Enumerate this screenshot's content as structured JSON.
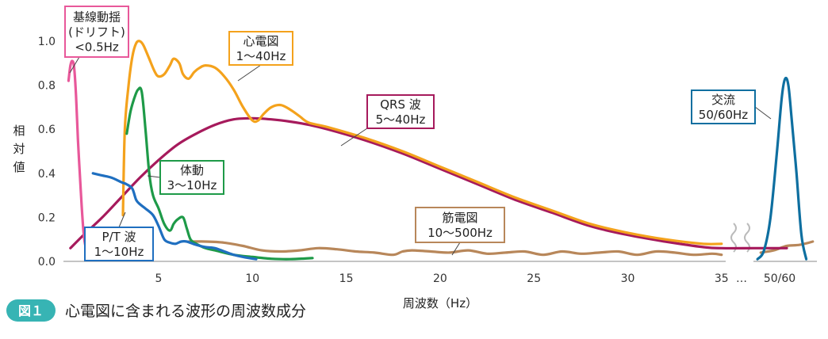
{
  "figure": {
    "badge": "図１",
    "title": "心電図に含まれる波形の周波数成分"
  },
  "chart_data": {
    "type": "line",
    "xlabel": "周波数（Hz）",
    "ylabel": "相対値",
    "xlim": [
      0,
      36.8
    ],
    "ylim": [
      0,
      1.0
    ],
    "x_ticks": [
      "5",
      "10",
      "15",
      "20",
      "25",
      "30",
      "35"
    ],
    "x_tick_values": [
      5,
      10,
      15,
      20,
      25,
      30,
      35
    ],
    "x_extra_ticks": [
      "…",
      "50/60"
    ],
    "y_ticks": [
      "0.0",
      "0.2",
      "0.4",
      "0.6",
      "0.8",
      "1.0"
    ],
    "y_tick_values": [
      0.0,
      0.2,
      0.4,
      0.6,
      0.8,
      1.0
    ],
    "grid": false,
    "axis_break": "between 35 and 50/60",
    "series": [
      {
        "key": "drift",
        "color": "#e8589a",
        "label_lines": [
          "基線動揺",
          "(ドリフト)",
          "<0.5Hz"
        ],
        "x": [
          0.2,
          0.3,
          0.4,
          0.5,
          0.6,
          0.7,
          0.8,
          0.9,
          1.0,
          1.1,
          1.2
        ],
        "y": [
          0.82,
          0.89,
          0.91,
          0.88,
          0.75,
          0.55,
          0.4,
          0.25,
          0.13,
          0.07,
          0.05
        ]
      },
      {
        "key": "ecg",
        "color": "#f4a21c",
        "label_lines": [
          "心電図",
          "1〜40Hz"
        ],
        "x": [
          3.1,
          3.2,
          3.4,
          3.6,
          3.8,
          4.0,
          4.2,
          4.5,
          4.8,
          5.0,
          5.3,
          5.6,
          5.8,
          6.1,
          6.3,
          6.6,
          6.9,
          7.2,
          7.5,
          8.0,
          8.5,
          9.0,
          9.5,
          10.0,
          10.3,
          10.6,
          11.0,
          11.5,
          12.0,
          12.5,
          13.0,
          14.0,
          16.0,
          18.0,
          20.0,
          22.0,
          24.0,
          26.0,
          28.0,
          30.0,
          32.0,
          34.0,
          35.0
        ],
        "y": [
          0.21,
          0.6,
          0.8,
          0.93,
          0.99,
          1.0,
          0.98,
          0.92,
          0.86,
          0.84,
          0.85,
          0.89,
          0.92,
          0.9,
          0.85,
          0.83,
          0.86,
          0.88,
          0.89,
          0.88,
          0.84,
          0.78,
          0.7,
          0.64,
          0.64,
          0.67,
          0.7,
          0.71,
          0.69,
          0.66,
          0.63,
          0.61,
          0.56,
          0.5,
          0.43,
          0.36,
          0.29,
          0.23,
          0.17,
          0.13,
          0.1,
          0.08,
          0.08
        ]
      },
      {
        "key": "qrs",
        "color": "#a61a5c",
        "label_lines": [
          "QRS 波",
          "5〜40Hz"
        ],
        "x": [
          0.3,
          1.0,
          2.0,
          3.0,
          4.0,
          5.0,
          6.0,
          7.0,
          8.0,
          9.0,
          10.0,
          11.0,
          12.0,
          13.0,
          14.0,
          16.0,
          18.0,
          20.0,
          22.0,
          24.0,
          26.0,
          28.0,
          30.0,
          32.0,
          34.0,
          35.0,
          36.0,
          37.0
        ],
        "y": [
          0.06,
          0.12,
          0.2,
          0.29,
          0.38,
          0.46,
          0.53,
          0.58,
          0.62,
          0.645,
          0.65,
          0.645,
          0.635,
          0.62,
          0.6,
          0.55,
          0.49,
          0.42,
          0.35,
          0.28,
          0.22,
          0.16,
          0.12,
          0.09,
          0.065,
          0.06,
          0.06,
          0.06
        ]
      },
      {
        "key": "motion",
        "color": "#1e9a48",
        "label_lines": [
          "体動",
          "3〜10Hz"
        ],
        "x": [
          3.3,
          3.5,
          3.7,
          3.9,
          4.1,
          4.3,
          4.5,
          4.7,
          5.0,
          5.3,
          5.6,
          5.8,
          6.0,
          6.3,
          6.5,
          6.7,
          7.0,
          7.5,
          8.0,
          9.0,
          10.0,
          11.0,
          12.0,
          13.2
        ],
        "y": [
          0.58,
          0.68,
          0.74,
          0.78,
          0.77,
          0.6,
          0.4,
          0.3,
          0.24,
          0.17,
          0.14,
          0.17,
          0.19,
          0.2,
          0.15,
          0.1,
          0.08,
          0.06,
          0.05,
          0.03,
          0.02,
          0.012,
          0.01,
          0.015
        ]
      },
      {
        "key": "pt",
        "color": "#1f6fc0",
        "label_lines": [
          "P/T 波",
          "1〜10Hz"
        ],
        "x": [
          1.5,
          2.0,
          2.5,
          3.0,
          3.3,
          3.6,
          3.8,
          4.0,
          4.3,
          4.7,
          5.0,
          5.3,
          5.6,
          5.9,
          6.2,
          6.5,
          7.0,
          7.5,
          8.0,
          8.5,
          9.0,
          9.5,
          10.2
        ],
        "y": [
          0.4,
          0.39,
          0.38,
          0.36,
          0.35,
          0.33,
          0.28,
          0.26,
          0.24,
          0.21,
          0.16,
          0.1,
          0.085,
          0.08,
          0.09,
          0.09,
          0.075,
          0.065,
          0.06,
          0.045,
          0.03,
          0.02,
          0.01
        ]
      },
      {
        "key": "emg",
        "color": "#b8875a",
        "label_lines": [
          "筋電図",
          "10〜500Hz"
        ],
        "x": [
          6.6,
          7.5,
          8.5,
          9.5,
          10.5,
          11.5,
          12.5,
          13.5,
          14.5,
          15.5,
          16.5,
          17.5,
          18.0,
          18.5,
          19.5,
          20.5,
          21.5,
          22.5,
          23.5,
          24.5,
          25.5,
          26.5,
          27.5,
          28.5,
          29.5,
          30.5,
          31.5,
          32.5,
          33.5,
          34.5,
          35.0
        ],
        "y": [
          0.09,
          0.09,
          0.085,
          0.07,
          0.05,
          0.045,
          0.05,
          0.06,
          0.055,
          0.045,
          0.04,
          0.03,
          0.045,
          0.05,
          0.045,
          0.04,
          0.05,
          0.035,
          0.04,
          0.045,
          0.03,
          0.045,
          0.035,
          0.04,
          0.045,
          0.03,
          0.045,
          0.04,
          0.03,
          0.035,
          0.03
        ]
      },
      {
        "key": "emg_after_break",
        "color": "#b8875a",
        "x": [
          36.2,
          36.6,
          37.0,
          37.4,
          37.8
        ],
        "y": [
          0.04,
          0.05,
          0.07,
          0.075,
          0.09
        ]
      },
      {
        "key": "ac",
        "color": "#0e6fa0",
        "label_lines": [
          "交流",
          "50/60Hz"
        ],
        "x": [
          36.1,
          36.3,
          36.5,
          36.7,
          36.85,
          36.95,
          37.05,
          37.15,
          37.3,
          37.45,
          37.6
        ],
        "y": [
          0.01,
          0.05,
          0.2,
          0.5,
          0.75,
          0.83,
          0.8,
          0.65,
          0.4,
          0.12,
          0.01
        ]
      }
    ]
  }
}
